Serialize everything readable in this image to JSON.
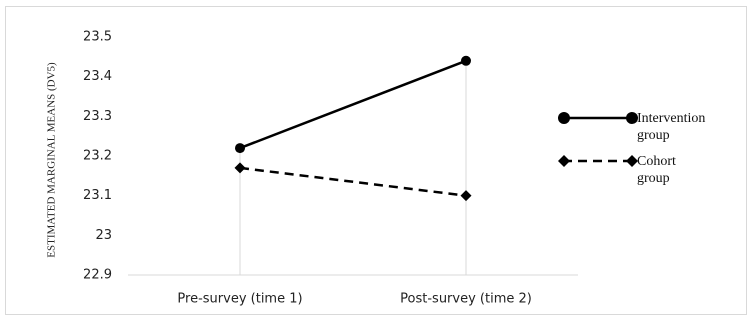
{
  "chart_data": {
    "type": "line",
    "title": "",
    "xlabel": "",
    "ylabel": "ESTIMATED MARGINAL MEANS (DV5)",
    "categories": [
      "Pre-survey (time 1)",
      "Post-survey (time 2)"
    ],
    "ylim": [
      22.9,
      23.5
    ],
    "yticks": [
      "23.5",
      "23.4",
      "23.3",
      "23.2",
      "23.1",
      "23",
      "22.9"
    ],
    "ytick_values": [
      23.5,
      23.4,
      23.3,
      23.2,
      23.1,
      23.0,
      22.9
    ],
    "grid": false,
    "legend_position": "right",
    "series": [
      {
        "name_lines": [
          "Intervention",
          "group"
        ],
        "name": "Intervention group",
        "values": [
          23.22,
          23.44
        ],
        "line_style": "solid",
        "marker": "circle",
        "color": "#000000"
      },
      {
        "name_lines": [
          "Cohort",
          "group"
        ],
        "name": "Cohort group",
        "values": [
          23.17,
          23.1
        ],
        "line_style": "dashed",
        "marker": "diamond",
        "color": "#000000"
      }
    ]
  }
}
